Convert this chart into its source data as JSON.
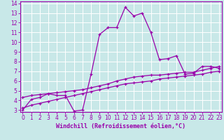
{
  "bg_color": "#c8e8e8",
  "line_color": "#9900aa",
  "grid_color": "#aadddd",
  "xlim": [
    -0.3,
    23.3
  ],
  "ylim": [
    2.8,
    14.2
  ],
  "xticks": [
    0,
    1,
    2,
    3,
    4,
    5,
    6,
    7,
    8,
    9,
    10,
    11,
    12,
    13,
    14,
    15,
    16,
    17,
    18,
    19,
    20,
    21,
    22,
    23
  ],
  "yticks": [
    3,
    4,
    5,
    6,
    7,
    8,
    9,
    10,
    11,
    12,
    13,
    14
  ],
  "xlabel": "Windchill (Refroidissement éolien,°C)",
  "series": [
    {
      "x": [
        0,
        1,
        2,
        3,
        4,
        5,
        6,
        7,
        8,
        9,
        10,
        11,
        12,
        13,
        14,
        15,
        16,
        17,
        18,
        19,
        20,
        21,
        22,
        23
      ],
      "y": [
        3.0,
        4.1,
        4.3,
        4.7,
        4.5,
        4.5,
        2.9,
        3.0,
        6.7,
        10.8,
        11.5,
        11.5,
        13.6,
        12.7,
        13.0,
        11.0,
        8.2,
        8.3,
        8.6,
        6.7,
        6.8,
        7.5,
        7.5,
        7.3
      ]
    },
    {
      "x": [
        0,
        1,
        2,
        3,
        4,
        5,
        6,
        7,
        8,
        9,
        10,
        11,
        12,
        13,
        14,
        15,
        16,
        17,
        18,
        19,
        20,
        21,
        22,
        23
      ],
      "y": [
        4.3,
        4.5,
        4.6,
        4.7,
        4.8,
        4.9,
        5.0,
        5.1,
        5.3,
        5.5,
        5.7,
        6.0,
        6.2,
        6.4,
        6.5,
        6.6,
        6.6,
        6.7,
        6.8,
        6.9,
        6.9,
        7.1,
        7.3,
        7.5
      ]
    },
    {
      "x": [
        0,
        1,
        2,
        3,
        4,
        5,
        6,
        7,
        8,
        9,
        10,
        11,
        12,
        13,
        14,
        15,
        16,
        17,
        18,
        19,
        20,
        21,
        22,
        23
      ],
      "y": [
        3.2,
        3.5,
        3.7,
        3.9,
        4.1,
        4.3,
        4.5,
        4.7,
        4.9,
        5.1,
        5.3,
        5.5,
        5.7,
        5.8,
        5.9,
        6.0,
        6.2,
        6.3,
        6.4,
        6.5,
        6.6,
        6.7,
        6.9,
        7.0
      ]
    }
  ],
  "marker": "+",
  "markersize": 3,
  "linewidth": 0.9,
  "tick_fontsize": 5.5,
  "xlabel_fontsize": 6.0
}
